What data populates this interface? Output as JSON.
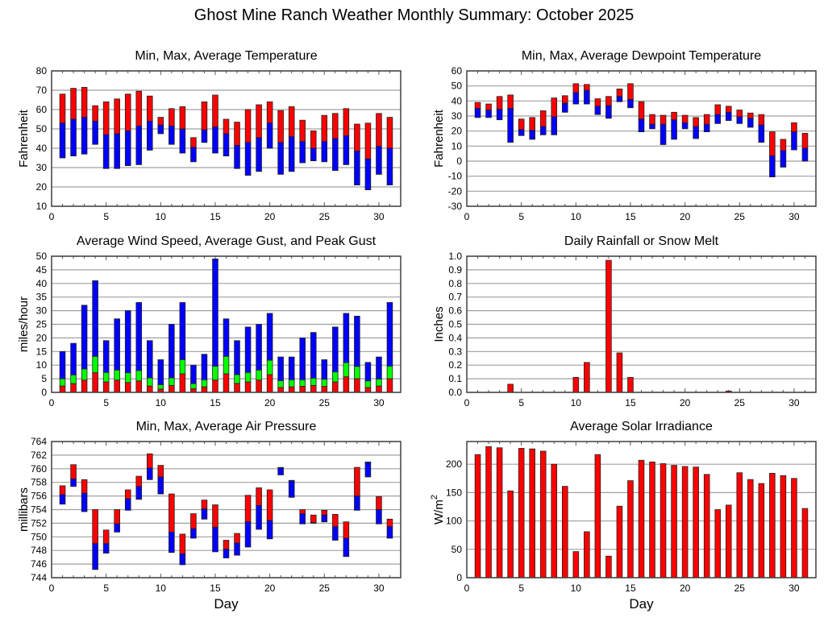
{
  "title": "Ghost Mine Ranch Weather Monthly Summary: October 2025",
  "colors": {
    "red": "#ff0000",
    "blue": "#0000ff",
    "green": "#00ff00",
    "grid": "#a0a0a0",
    "frame": "#404040"
  },
  "chart_data": [
    {
      "id": "temperature",
      "type": "bar",
      "title": "Min, Max, Average Temperature",
      "ylabel": "Fahrenheit",
      "xlabel": "",
      "xlim": [
        0,
        32
      ],
      "xticks": [
        0,
        5,
        10,
        15,
        20,
        25,
        30
      ],
      "ylim": [
        10,
        80
      ],
      "yticks": [
        10,
        20,
        30,
        40,
        50,
        60,
        70,
        80
      ],
      "grid": true,
      "x": [
        1,
        2,
        3,
        4,
        5,
        6,
        7,
        8,
        9,
        10,
        11,
        12,
        13,
        14,
        15,
        16,
        17,
        18,
        19,
        20,
        21,
        22,
        23,
        24,
        25,
        26,
        27,
        28,
        29,
        30,
        31
      ],
      "series": [
        {
          "name": "min",
          "values": [
            35,
            36,
            37,
            42,
            29.5,
            29.5,
            31,
            31.5,
            39,
            47.5,
            42,
            37.5,
            33,
            43,
            37.5,
            36,
            29.5,
            26,
            28,
            40,
            26.5,
            28,
            32.5,
            33.5,
            33,
            28.5,
            31.5,
            21,
            18.5,
            26.5,
            21
          ]
        },
        {
          "name": "avg",
          "values": [
            53,
            55,
            56,
            54,
            47,
            47.5,
            49,
            51.5,
            54,
            52,
            51.5,
            50,
            40.5,
            49.5,
            51,
            47.5,
            41.5,
            43,
            45.5,
            53,
            43,
            46,
            43.5,
            40,
            43.5,
            45,
            46.5,
            38.5,
            34.5,
            41,
            40
          ]
        },
        {
          "name": "max",
          "values": [
            68,
            71,
            71.5,
            62,
            64,
            65.5,
            68,
            69.5,
            67,
            56,
            60.5,
            61.5,
            45.5,
            64,
            67.5,
            55,
            53.5,
            60,
            62.5,
            64,
            59.5,
            61.5,
            54.5,
            49,
            57,
            58,
            60.5,
            52.5,
            53,
            58,
            56
          ]
        }
      ]
    },
    {
      "id": "dewpoint",
      "type": "bar",
      "title": "Min, Max, Average Dewpoint Temperature",
      "ylabel": "Fahrenheit",
      "xlabel": "",
      "xlim": [
        0,
        32
      ],
      "xticks": [
        0,
        5,
        10,
        15,
        20,
        25,
        30
      ],
      "ylim": [
        -30,
        60
      ],
      "yticks": [
        -30,
        -20,
        -10,
        0,
        10,
        20,
        30,
        40,
        50,
        60
      ],
      "grid": true,
      "x": [
        1,
        2,
        3,
        4,
        5,
        6,
        7,
        8,
        9,
        10,
        11,
        12,
        13,
        14,
        15,
        16,
        17,
        18,
        19,
        20,
        21,
        22,
        23,
        24,
        25,
        26,
        27,
        28,
        29,
        30,
        31
      ],
      "series": [
        {
          "name": "min",
          "values": [
            29,
            29,
            27.5,
            12.5,
            17,
            14.5,
            17.5,
            17.5,
            32.5,
            38,
            38,
            31,
            28.5,
            39.5,
            35.5,
            19.5,
            21.5,
            11,
            14.5,
            21.5,
            15,
            19.5,
            25,
            27,
            25,
            22.5,
            12.5,
            -10.5,
            -4,
            7.5,
            0
          ]
        },
        {
          "name": "avg",
          "values": [
            35,
            34,
            34.5,
            35,
            21,
            20.5,
            23,
            29.5,
            38.5,
            45.5,
            47,
            36.5,
            37,
            43,
            41,
            28,
            24.5,
            24.5,
            27.5,
            25.5,
            23,
            24.5,
            31,
            32.5,
            29.5,
            28.5,
            24,
            3.5,
            7,
            19.5,
            8.5
          ]
        },
        {
          "name": "max",
          "values": [
            39,
            38,
            43,
            44,
            28,
            29,
            33.5,
            42,
            43.5,
            51.5,
            51,
            41.5,
            43,
            48,
            51.5,
            39.5,
            31,
            30.5,
            32.5,
            30.5,
            29,
            31,
            37.5,
            36.5,
            34,
            32,
            31,
            19.5,
            14.5,
            25.5,
            18.5
          ]
        }
      ]
    },
    {
      "id": "wind",
      "type": "bar",
      "title": "Average Wind Speed, Average Gust, and Peak Gust",
      "ylabel": "miles/hour",
      "xlabel": "",
      "xlim": [
        0,
        32
      ],
      "xticks": [
        0,
        5,
        10,
        15,
        20,
        25,
        30
      ],
      "ylim": [
        0,
        50
      ],
      "yticks": [
        0,
        5,
        10,
        15,
        20,
        25,
        30,
        35,
        40,
        45,
        50
      ],
      "grid": true,
      "x": [
        1,
        2,
        3,
        4,
        5,
        6,
        7,
        8,
        9,
        10,
        11,
        12,
        13,
        14,
        15,
        16,
        17,
        18,
        19,
        20,
        21,
        22,
        23,
        24,
        25,
        26,
        27,
        28,
        29,
        30,
        31
      ],
      "series": [
        {
          "name": "average wind speed",
          "values": [
            2.3,
            3.2,
            4.5,
            7.2,
            3.8,
            4.5,
            3.6,
            4.2,
            2.3,
            1.2,
            2.5,
            6.8,
            1.3,
            2,
            4.5,
            6.8,
            3.3,
            3.8,
            4.5,
            6.5,
            1.8,
            2,
            2.2,
            2.5,
            2.2,
            3.8,
            5.7,
            5,
            1.8,
            2.3,
            5
          ]
        },
        {
          "name": "average gust",
          "values": [
            5,
            6.4,
            8.6,
            13.2,
            7.3,
            8.2,
            7.2,
            8,
            5.3,
            2.8,
            5.3,
            12,
            3.2,
            4.6,
            9.6,
            13.2,
            6.5,
            7.3,
            8.2,
            11.8,
            4.3,
            4.6,
            4.6,
            5.2,
            4.8,
            7.5,
            10.9,
            9.5,
            4.2,
            4.9,
            9.6
          ]
        },
        {
          "name": "peak gust",
          "values": [
            15,
            18,
            32,
            41,
            19,
            27,
            30,
            33,
            19,
            12,
            25,
            33,
            10,
            14,
            49,
            27,
            19,
            24,
            25,
            29,
            13,
            13,
            20,
            22,
            12,
            24,
            29,
            28,
            11,
            13,
            33
          ]
        }
      ]
    },
    {
      "id": "rainfall",
      "type": "bar",
      "title": "Daily Rainfall or Snow Melt",
      "ylabel": "Inches",
      "xlabel": "",
      "xlim": [
        0,
        32
      ],
      "xticks": [
        0,
        5,
        10,
        15,
        20,
        25,
        30
      ],
      "ylim": [
        0,
        1.0
      ],
      "yticks": [
        0.0,
        0.1,
        0.2,
        0.3,
        0.4,
        0.5,
        0.6,
        0.7,
        0.8,
        0.9,
        1.0
      ],
      "grid": true,
      "x": [
        1,
        2,
        3,
        4,
        5,
        6,
        7,
        8,
        9,
        10,
        11,
        12,
        13,
        14,
        15,
        16,
        17,
        18,
        19,
        20,
        21,
        22,
        23,
        24,
        25,
        26,
        27,
        28,
        29,
        30,
        31
      ],
      "series": [
        {
          "name": "rainfall",
          "values": [
            0,
            0,
            0,
            0.06,
            0,
            0,
            0,
            0,
            0,
            0.11,
            0.22,
            0,
            0.97,
            0.29,
            0.11,
            0,
            0,
            0,
            0,
            0,
            0,
            0,
            0,
            0.01,
            0,
            0,
            0,
            0,
            0,
            0,
            0
          ]
        }
      ]
    },
    {
      "id": "pressure",
      "type": "bar",
      "title": "Min, Max, Average Air Pressure",
      "ylabel": "millibars",
      "xlabel": "Day",
      "xlim": [
        0,
        32
      ],
      "xticks": [
        0,
        5,
        10,
        15,
        20,
        25,
        30
      ],
      "ylim": [
        744,
        764
      ],
      "yticks": [
        744,
        746,
        748,
        750,
        752,
        754,
        756,
        758,
        760,
        762,
        764
      ],
      "grid": true,
      "x": [
        1,
        2,
        3,
        4,
        5,
        6,
        7,
        8,
        9,
        10,
        11,
        12,
        13,
        14,
        15,
        16,
        17,
        18,
        19,
        20,
        21,
        22,
        23,
        24,
        25,
        26,
        27,
        28,
        29,
        30,
        31
      ],
      "series": [
        {
          "name": "min",
          "values": [
            754.8,
            757.4,
            753.7,
            745.2,
            747.6,
            750.7,
            753.9,
            755.5,
            758.4,
            756.3,
            747.7,
            745.9,
            749.8,
            752.6,
            747.8,
            746.9,
            747.3,
            748.5,
            751.1,
            749.7,
            759.1,
            755.8,
            751.9,
            752,
            752.2,
            749.5,
            747.1,
            753.9,
            758.8,
            751.9,
            749.8
          ]
        },
        {
          "name": "avg",
          "values": [
            756.2,
            758.5,
            756.4,
            749,
            749,
            751.9,
            755.6,
            757.4,
            760.1,
            758.8,
            750.7,
            747.5,
            751.2,
            754.1,
            751.4,
            748.2,
            749.1,
            752.2,
            754.6,
            752.4,
            760.1,
            758.2,
            753.4,
            752.1,
            753.2,
            751.5,
            749.8,
            756,
            760.9,
            754,
            751.5
          ]
        },
        {
          "name": "max",
          "values": [
            757.5,
            760.6,
            758.4,
            754,
            751,
            754,
            756.9,
            758.9,
            762.2,
            760.5,
            756.3,
            750.4,
            753.4,
            755.4,
            754.7,
            749.5,
            750.5,
            756.1,
            757.2,
            756.9,
            759.1,
            757.6,
            754,
            753.2,
            753.9,
            753.3,
            752.2,
            760.2,
            760.8,
            755.9,
            752.6
          ]
        }
      ]
    },
    {
      "id": "solar",
      "type": "bar",
      "title": "Average Solar Irradiance",
      "ylabel": "W/m",
      "ylabel_sup": "2",
      "xlabel": "Day",
      "xlim": [
        0,
        32
      ],
      "xticks": [
        0,
        5,
        10,
        15,
        20,
        25,
        30
      ],
      "ylim": [
        0,
        240
      ],
      "yticks": [
        0,
        50,
        100,
        150,
        200
      ],
      "grid": true,
      "x": [
        1,
        2,
        3,
        4,
        5,
        6,
        7,
        8,
        9,
        10,
        11,
        12,
        13,
        14,
        15,
        16,
        17,
        18,
        19,
        20,
        21,
        22,
        23,
        24,
        25,
        26,
        27,
        28,
        29,
        30,
        31
      ],
      "series": [
        {
          "name": "solar irradiance",
          "values": [
            217,
            231,
            229,
            153,
            228,
            227,
            223,
            200,
            161,
            46,
            81,
            217,
            38,
            126,
            171,
            207,
            204,
            201,
            198,
            196,
            195,
            182,
            120,
            128,
            185,
            173,
            166,
            184,
            180,
            175,
            122
          ]
        }
      ]
    }
  ]
}
